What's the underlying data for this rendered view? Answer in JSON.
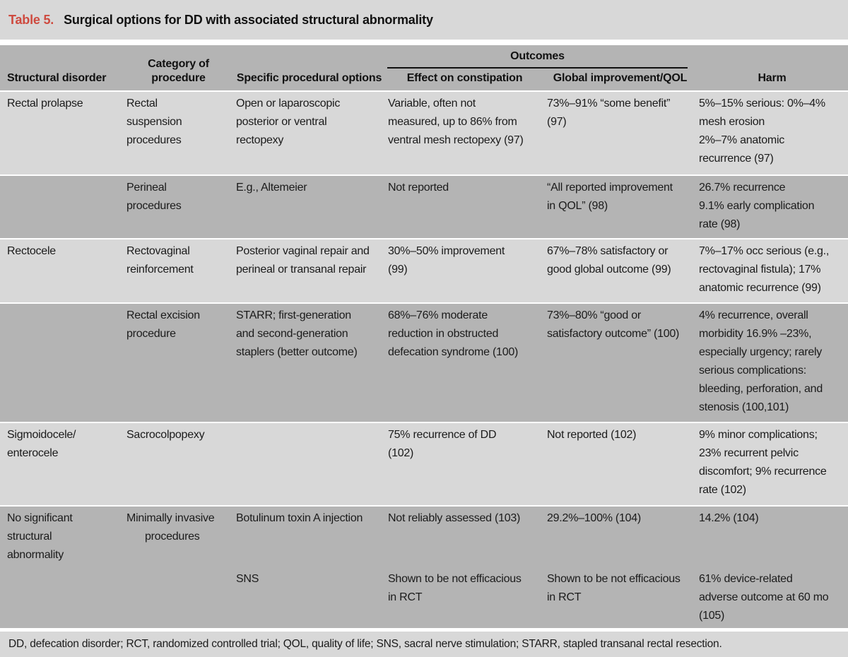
{
  "title": {
    "label": "Table 5.",
    "text": "Surgical options for DD with associated structural abnormality"
  },
  "colors": {
    "accent_red": "#ce4a3f",
    "band_light": "#d8d8d8",
    "band_dark": "#b4b4b4",
    "rule_black": "#111111"
  },
  "header": {
    "structural_disorder": "Structural disorder",
    "category": "Category of procedure",
    "specific": "Specific procedural options",
    "outcomes": "Outcomes",
    "effect": "Effect on constipation",
    "global": "Global improvement/QOL",
    "harm": "Harm"
  },
  "table": {
    "rows": [
      {
        "cells": [
          "Rectal prolapse",
          "Rectal\nsuspension\nprocedures",
          "Open or laparoscopic\nposterior or ventral\nrectopexy",
          "Variable, often not\nmeasured, up to 86% from\nventral mesh rectopexy (97)",
          "73%–91% “some benefit”\n(97)",
          "5%–15% serious: 0%–4%\nmesh erosion\n2%–7% anatomic\nrecurrence (97)"
        ]
      },
      {
        "cells": [
          "",
          "Perineal\nprocedures",
          "E.g., Altemeier",
          "Not reported",
          "“All reported improvement\nin QOL” (98)",
          "26.7% recurrence\n9.1% early complication\nrate (98)"
        ]
      },
      {
        "cells": [
          "Rectocele",
          "Rectovaginal\nreinforcement",
          "Posterior vaginal repair and\nperineal or transanal repair",
          "30%–50% improvement\n(99)",
          "67%–78% satisfactory or\ngood global outcome (99)",
          "7%–17% occ serious (e.g.,\nrectovaginal fistula); 17%\nanatomic recurrence (99)"
        ]
      },
      {
        "cells": [
          "",
          "Rectal excision\nprocedure",
          "STARR; first-generation\nand second-generation\nstaplers (better outcome)",
          "68%–76% moderate\nreduction in obstructed\ndefecation syndrome (100)",
          "73%–80% “good or\nsatisfactory outcome” (100)",
          "4% recurrence, overall\nmorbidity 16.9% –23%,\nespecially urgency; rarely\nserious complications:\nbleeding, perforation, and\nstenosis (100,101)"
        ]
      },
      {
        "cells": [
          "Sigmoidocele/\nenterocele",
          "Sacrocolpopexy",
          "",
          "75% recurrence of DD\n(102)",
          "Not reported (102)",
          "9% minor complications;\n23% recurrent pelvic\ndiscomfort; 9% recurrence\nrate (102)"
        ]
      },
      {
        "cells": [
          "No significant\nstructural\nabnormality",
          "Minimally invasive\nprocedures",
          "Botulinum toxin A injection",
          "Not reliably assessed (103)",
          "29.2%–100% (104)",
          "14.2% (104)"
        ]
      },
      {
        "cells": [
          "",
          "",
          "SNS",
          "Shown to be not efficacious\nin RCT",
          "Shown to be not efficacious\nin RCT",
          "61% device-related\nadverse outcome at 60 mo\n(105)"
        ]
      }
    ]
  },
  "footnote": "DD, defecation disorder; RCT, randomized controlled trial; QOL, quality of life; SNS, sacral nerve stimulation; STARR, stapled transanal rectal resection."
}
